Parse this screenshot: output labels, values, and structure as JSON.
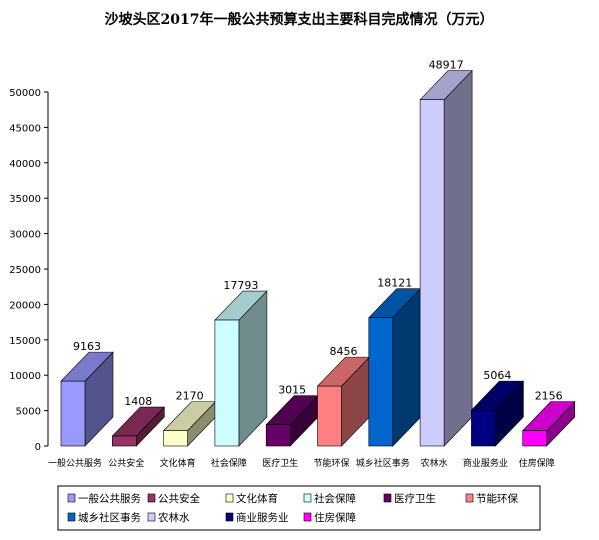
{
  "chart_data": {
    "type": "bar",
    "title": "沙坡头区2017年一般公共预算支出主要科目完成情况（万元）",
    "xlabel": "",
    "ylabel": "",
    "ylim": [
      0,
      50000
    ],
    "yticks": [
      0,
      5000,
      10000,
      15000,
      20000,
      25000,
      30000,
      35000,
      40000,
      45000,
      50000
    ],
    "grid": false,
    "legend_position": "bottom",
    "categories": [
      "一般公共服务",
      "公共安全",
      "文化体育",
      "社会保障",
      "医疗卫生",
      "节能环保",
      "城乡社区事务",
      "农林水",
      "商业服务业",
      "住房保障"
    ],
    "values": [
      9163,
      1408,
      2170,
      17793,
      3015,
      8456,
      18121,
      48917,
      5064,
      2156
    ],
    "colors": [
      "#9999FF",
      "#993366",
      "#FFFFCC",
      "#CCFFFF",
      "#660066",
      "#FF8080",
      "#0066CC",
      "#CCCCFF",
      "#000080",
      "#FF00FF"
    ]
  }
}
